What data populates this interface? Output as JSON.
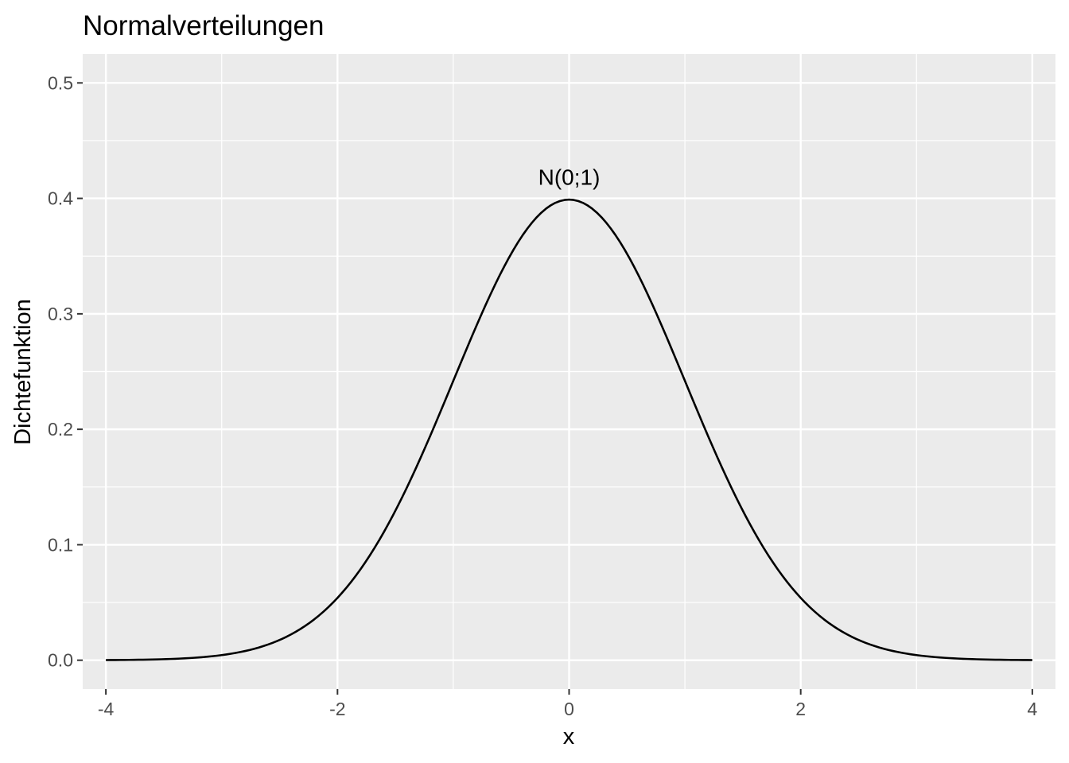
{
  "chart_data": {
    "type": "line",
    "title": "Normalverteilungen",
    "xlabel": "x",
    "ylabel": "Dichtefunktion",
    "xlim": [
      -4,
      4
    ],
    "ylim": [
      0,
      0.5
    ],
    "x_ticks": [
      -4,
      -2,
      0,
      2,
      4
    ],
    "x_tick_labels": [
      "-4",
      "-2",
      "0",
      "2",
      "4"
    ],
    "y_ticks": [
      0.0,
      0.1,
      0.2,
      0.3,
      0.4,
      0.5
    ],
    "y_tick_labels": [
      "0.0",
      "0.1",
      "0.2",
      "0.3",
      "0.4",
      "0.5"
    ],
    "grid": true,
    "legend": "none",
    "colors": {
      "panel_background": "#ebebeb",
      "grid": "#ffffff",
      "line": "#000000"
    },
    "series": [
      {
        "x": [
          -4.0,
          -3.5,
          -3.0,
          -2.5,
          -2.0,
          -1.5,
          -1.0,
          -0.5,
          0.0,
          0.5,
          1.0,
          1.5,
          2.0,
          2.5,
          3.0,
          3.5,
          4.0
        ],
        "y": [
          0.0001,
          0.0009,
          0.0044,
          0.0175,
          0.054,
          0.1295,
          0.242,
          0.3521,
          0.3989,
          0.3521,
          0.242,
          0.1295,
          0.054,
          0.0175,
          0.0044,
          0.0009,
          0.0001
        ]
      }
    ],
    "annotations": [
      {
        "text": "N(0;1)",
        "x": 0,
        "y": 0.4
      }
    ]
  }
}
